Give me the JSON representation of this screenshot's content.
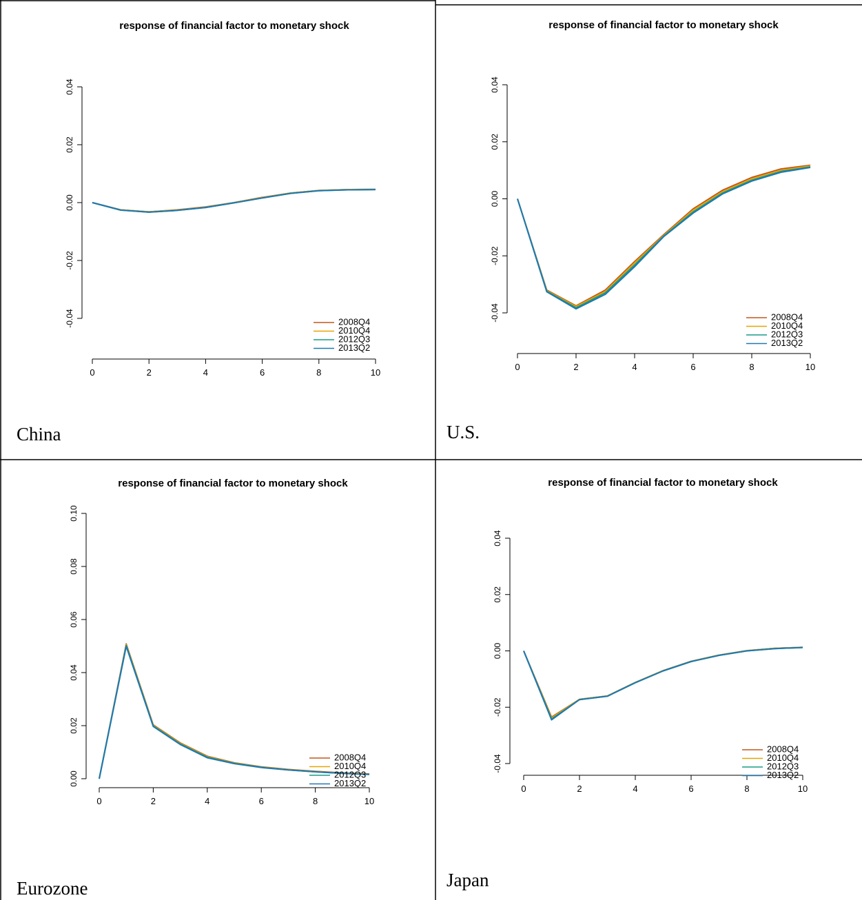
{
  "colors": {
    "axis": "#000000",
    "series": [
      "#c3561a",
      "#e6a400",
      "#169c85",
      "#1f78b4"
    ]
  },
  "cells": [
    {
      "label": "China"
    },
    {
      "label": "U.S."
    },
    {
      "label": "Eurozone"
    },
    {
      "label": "Japan"
    }
  ],
  "chart_data": [
    {
      "type": "line",
      "title": "response of financial factor to monetary shock",
      "xlabel": "",
      "ylabel": "",
      "xlim": [
        0,
        10
      ],
      "ylim": [
        -0.04,
        0.04
      ],
      "xticks": [
        0,
        2,
        4,
        6,
        8,
        10
      ],
      "xtick_labels": [
        "0",
        "2",
        "4",
        "6",
        "8",
        "10"
      ],
      "yticks": [
        -0.04,
        -0.02,
        0,
        0.02,
        0.04
      ],
      "ytick_labels": [
        "-0.04",
        "-0.02",
        "0.00",
        "0.02",
        "0.04"
      ],
      "legend_position": "bottom-right",
      "grid": false,
      "x": [
        0,
        1,
        2,
        3,
        4,
        5,
        6,
        7,
        8,
        9,
        10
      ],
      "series": [
        {
          "name": "2008Q4",
          "values": [
            0,
            -0.0025,
            -0.0032,
            -0.0025,
            -0.0015,
            0,
            0.0018,
            0.0033,
            0.0042,
            0.0045,
            0.0046
          ]
        },
        {
          "name": "2010Q4",
          "values": [
            0,
            -0.0025,
            -0.0032,
            -0.0026,
            -0.0016,
            0,
            0.0017,
            0.0033,
            0.0042,
            0.0045,
            0.0046
          ]
        },
        {
          "name": "2012Q3",
          "values": [
            0,
            -0.0026,
            -0.0033,
            -0.0027,
            -0.0017,
            -0.0001,
            0.0016,
            0.0032,
            0.0041,
            0.0044,
            0.0045
          ]
        },
        {
          "name": "2013Q2",
          "values": [
            0,
            -0.0026,
            -0.0033,
            -0.0027,
            -0.0017,
            -0.0001,
            0.0016,
            0.0032,
            0.0041,
            0.0044,
            0.0045
          ]
        }
      ]
    },
    {
      "type": "line",
      "title": "response of financial factor to monetary shock",
      "xlabel": "",
      "ylabel": "",
      "xlim": [
        0,
        10
      ],
      "ylim": [
        -0.04,
        0.04
      ],
      "xticks": [
        0,
        2,
        4,
        6,
        8,
        10
      ],
      "xtick_labels": [
        "0",
        "2",
        "4",
        "6",
        "8",
        "10"
      ],
      "yticks": [
        -0.04,
        -0.02,
        0,
        0.02,
        0.04
      ],
      "ytick_labels": [
        "-0.04",
        "-0.02",
        "0.00",
        "0.02",
        "0.04"
      ],
      "legend_position": "bottom-right",
      "grid": false,
      "x": [
        0,
        1,
        2,
        3,
        4,
        5,
        6,
        7,
        8,
        9,
        10
      ],
      "series": [
        {
          "name": "2008Q4",
          "values": [
            0,
            -0.032,
            -0.0375,
            -0.032,
            -0.022,
            -0.0125,
            -0.0035,
            0.003,
            0.0075,
            0.0105,
            0.0118
          ]
        },
        {
          "name": "2010Q4",
          "values": [
            0,
            -0.0322,
            -0.0378,
            -0.0325,
            -0.0225,
            -0.0128,
            -0.004,
            0.0025,
            0.007,
            0.01,
            0.0115
          ]
        },
        {
          "name": "2012Q3",
          "values": [
            0,
            -0.0324,
            -0.0382,
            -0.033,
            -0.0232,
            -0.013,
            -0.0046,
            0.002,
            0.0065,
            0.0096,
            0.0112
          ]
        },
        {
          "name": "2013Q2",
          "values": [
            0,
            -0.0326,
            -0.0386,
            -0.0335,
            -0.0238,
            -0.0132,
            -0.005,
            0.0017,
            0.0062,
            0.0093,
            0.011
          ]
        }
      ]
    },
    {
      "type": "line",
      "title": "response of financial factor to monetary shock",
      "xlabel": "",
      "ylabel": "",
      "xlim": [
        0,
        10
      ],
      "ylim": [
        0,
        0.1
      ],
      "xticks": [
        0,
        2,
        4,
        6,
        8,
        10
      ],
      "xtick_labels": [
        "0",
        "2",
        "4",
        "6",
        "8",
        "10"
      ],
      "yticks": [
        0,
        0.02,
        0.04,
        0.06,
        0.08,
        0.1
      ],
      "ytick_labels": [
        "0.00",
        "0.02",
        "0.04",
        "0.06",
        "0.08",
        "0.10"
      ],
      "legend_position": "bottom-right",
      "grid": false,
      "x": [
        0,
        1,
        2,
        3,
        4,
        5,
        6,
        7,
        8,
        9,
        10
      ],
      "series": [
        {
          "name": "2008Q4",
          "values": [
            0,
            0.0508,
            0.0203,
            0.0135,
            0.0085,
            0.006,
            0.0045,
            0.0035,
            0.0028,
            0.0022,
            0.0018
          ]
        },
        {
          "name": "2010Q4",
          "values": [
            0,
            0.0505,
            0.0201,
            0.0133,
            0.0083,
            0.0059,
            0.0044,
            0.0034,
            0.0027,
            0.0021,
            0.0017
          ]
        },
        {
          "name": "2012Q3",
          "values": [
            0,
            0.0502,
            0.0199,
            0.0131,
            0.0081,
            0.0058,
            0.0043,
            0.0033,
            0.0026,
            0.002,
            0.0016
          ]
        },
        {
          "name": "2013Q2",
          "values": [
            0,
            0.0499,
            0.0197,
            0.0129,
            0.0079,
            0.0057,
            0.0042,
            0.0033,
            0.0026,
            0.002,
            0.0016
          ]
        }
      ]
    },
    {
      "type": "line",
      "title": "response of financial factor to monetary shock",
      "xlabel": "",
      "ylabel": "",
      "xlim": [
        0,
        10
      ],
      "ylim": [
        -0.04,
        0.04
      ],
      "xticks": [
        0,
        2,
        4,
        6,
        8,
        10
      ],
      "xtick_labels": [
        "0",
        "2",
        "4",
        "6",
        "8",
        "10"
      ],
      "yticks": [
        -0.04,
        -0.02,
        0,
        0.02,
        0.04
      ],
      "ytick_labels": [
        "-0.04",
        "-0.02",
        "0.00",
        "0.02",
        "0.04"
      ],
      "legend_position": "bottom-right",
      "grid": false,
      "x": [
        0,
        1,
        2,
        3,
        4,
        5,
        6,
        7,
        8,
        9,
        10
      ],
      "series": [
        {
          "name": "2008Q4",
          "values": [
            0,
            -0.0235,
            -0.0172,
            -0.016,
            -0.0112,
            -0.007,
            -0.0037,
            -0.0015,
            0.0001,
            0.0009,
            0.0013
          ]
        },
        {
          "name": "2010Q4",
          "values": [
            0,
            -0.0238,
            -0.0172,
            -0.016,
            -0.0112,
            -0.007,
            -0.0037,
            -0.0015,
            0.0001,
            0.0009,
            0.0013
          ]
        },
        {
          "name": "2012Q3",
          "values": [
            0,
            -0.0242,
            -0.0173,
            -0.0161,
            -0.0113,
            -0.0071,
            -0.0038,
            -0.0016,
            0,
            0.0008,
            0.0012
          ]
        },
        {
          "name": "2013Q2",
          "values": [
            0,
            -0.0245,
            -0.0173,
            -0.0161,
            -0.0113,
            -0.0071,
            -0.0038,
            -0.0016,
            0,
            0.0008,
            0.0012
          ]
        }
      ]
    }
  ]
}
